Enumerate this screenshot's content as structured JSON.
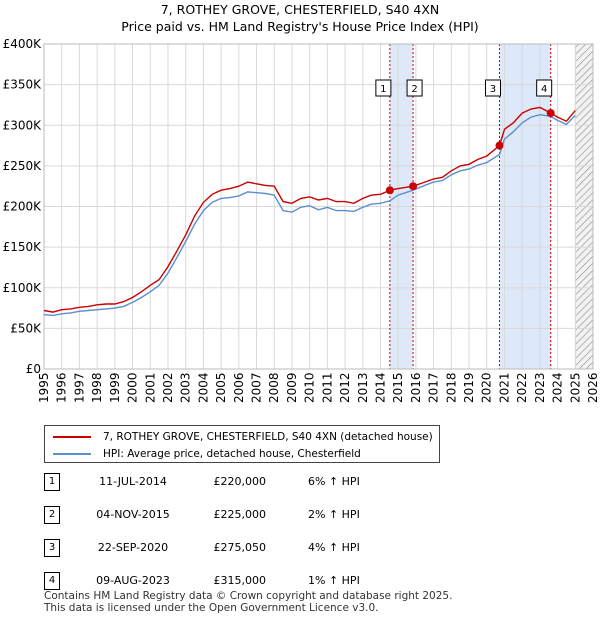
{
  "chart_data": {
    "type": "line",
    "title": "7, ROTHEY GROVE, CHESTERFIELD, S40 4XN",
    "subtitle": "Price paid vs. HM Land Registry's House Price Index (HPI)",
    "xlabel": "",
    "ylabel": "",
    "xlim": [
      1995,
      2026
    ],
    "ylim": [
      0,
      400000
    ],
    "y_ticks": [
      0,
      50000,
      100000,
      150000,
      200000,
      250000,
      300000,
      350000,
      400000
    ],
    "y_tick_labels": [
      "£0",
      "£50K",
      "£100K",
      "£150K",
      "£200K",
      "£250K",
      "£300K",
      "£350K",
      "£400K"
    ],
    "x_ticks": [
      1995,
      1996,
      1997,
      1998,
      1999,
      2000,
      2001,
      2002,
      2003,
      2004,
      2005,
      2006,
      2007,
      2008,
      2009,
      2010,
      2011,
      2012,
      2013,
      2014,
      2015,
      2016,
      2017,
      2018,
      2019,
      2020,
      2021,
      2022,
      2023,
      2024,
      2025,
      2026
    ],
    "grid": true,
    "data_end_year": 2025.0,
    "series": [
      {
        "name": "7, ROTHEY GROVE, CHESTERFIELD, S40 4XN (detached house)",
        "color": "#cc0000",
        "x": [
          1995.0,
          1995.5,
          1996.0,
          1996.5,
          1997.0,
          1997.5,
          1998.0,
          1998.5,
          1999.0,
          1999.5,
          2000.0,
          2000.5,
          2001.0,
          2001.5,
          2002.0,
          2002.5,
          2003.0,
          2003.5,
          2004.0,
          2004.5,
          2005.0,
          2005.5,
          2006.0,
          2006.5,
          2007.0,
          2007.5,
          2008.0,
          2008.5,
          2009.0,
          2009.5,
          2010.0,
          2010.5,
          2011.0,
          2011.5,
          2012.0,
          2012.5,
          2013.0,
          2013.5,
          2014.0,
          2014.53,
          2015.0,
          2015.84,
          2016.5,
          2017.0,
          2017.5,
          2018.0,
          2018.5,
          2019.0,
          2019.5,
          2020.0,
          2020.72,
          2021.0,
          2021.5,
          2022.0,
          2022.5,
          2023.0,
          2023.61,
          2024.0,
          2024.5,
          2025.0
        ],
        "values": [
          72000,
          70000,
          73000,
          74000,
          76000,
          77000,
          79000,
          80000,
          80000,
          83000,
          88000,
          95000,
          103000,
          110000,
          126000,
          145000,
          165000,
          188000,
          205000,
          215000,
          220000,
          222000,
          225000,
          230000,
          228000,
          226000,
          225000,
          206000,
          204000,
          210000,
          212000,
          208000,
          210000,
          206000,
          206000,
          204000,
          210000,
          214000,
          215000,
          220000,
          222000,
          225000,
          230000,
          234000,
          236000,
          244000,
          250000,
          252000,
          258000,
          262000,
          275050,
          295000,
          303000,
          315000,
          320000,
          322000,
          315000,
          310000,
          305000,
          318000
        ]
      },
      {
        "name": "HPI: Average price, detached house, Chesterfield",
        "color": "#5b8fd0",
        "x": [
          1995.0,
          1995.5,
          1996.0,
          1996.5,
          1997.0,
          1997.5,
          1998.0,
          1998.5,
          1999.0,
          1999.5,
          2000.0,
          2000.5,
          2001.0,
          2001.5,
          2002.0,
          2002.5,
          2003.0,
          2003.5,
          2004.0,
          2004.5,
          2005.0,
          2005.5,
          2006.0,
          2006.5,
          2007.0,
          2007.5,
          2008.0,
          2008.5,
          2009.0,
          2009.5,
          2010.0,
          2010.5,
          2011.0,
          2011.5,
          2012.0,
          2012.5,
          2013.0,
          2013.5,
          2014.0,
          2014.53,
          2015.0,
          2015.84,
          2016.5,
          2017.0,
          2017.5,
          2018.0,
          2018.5,
          2019.0,
          2019.5,
          2020.0,
          2020.72,
          2021.0,
          2021.5,
          2022.0,
          2022.5,
          2023.0,
          2023.61,
          2024.0,
          2024.5,
          2025.0
        ],
        "values": [
          67000,
          66000,
          68000,
          69000,
          71000,
          72000,
          73000,
          74000,
          75000,
          77000,
          82000,
          88000,
          95000,
          103000,
          118000,
          137000,
          157000,
          178000,
          195000,
          205000,
          210000,
          211000,
          213000,
          218000,
          217000,
          216000,
          214000,
          195000,
          193000,
          199000,
          201000,
          196000,
          199000,
          195000,
          195000,
          194000,
          199000,
          203000,
          204000,
          207000,
          214000,
          220000,
          226000,
          230000,
          232000,
          239000,
          244000,
          246000,
          251000,
          254000,
          264000,
          283000,
          292000,
          303000,
          310000,
          313000,
          311000,
          306000,
          301000,
          312000
        ]
      }
    ],
    "sales": [
      {
        "num": "1",
        "x": 2014.53,
        "value": 220000
      },
      {
        "num": "2",
        "x": 2015.84,
        "value": 225000
      },
      {
        "num": "3",
        "x": 2020.72,
        "value": 275050
      },
      {
        "num": "4",
        "x": 2023.61,
        "value": 315000
      }
    ],
    "shaded_ranges": [
      [
        2014.53,
        2015.84
      ],
      [
        2020.72,
        2023.61
      ]
    ]
  },
  "legend": {
    "property_label": "7, ROTHEY GROVE, CHESTERFIELD, S40 4XN (detached house)",
    "hpi_label": "HPI: Average price, detached house, Chesterfield"
  },
  "sales_table": [
    {
      "num": "1",
      "date": "11-JUL-2014",
      "price": "£220,000",
      "hpi": "6% ↑ HPI"
    },
    {
      "num": "2",
      "date": "04-NOV-2015",
      "price": "£225,000",
      "hpi": "2% ↑ HPI"
    },
    {
      "num": "3",
      "date": "22-SEP-2020",
      "price": "£275,050",
      "hpi": "4% ↑ HPI"
    },
    {
      "num": "4",
      "date": "09-AUG-2023",
      "price": "£315,000",
      "hpi": "1% ↑ HPI"
    }
  ],
  "footer": {
    "line1": "Contains HM Land Registry data © Crown copyright and database right 2025.",
    "line2": "This data is licensed under the Open Government Licence v3.0."
  },
  "colors": {
    "property": "#cc0000",
    "hpi": "#5b8fd0",
    "shade": "#dde8f8",
    "marker_line": "#cc0000",
    "hatch": "#999999"
  }
}
